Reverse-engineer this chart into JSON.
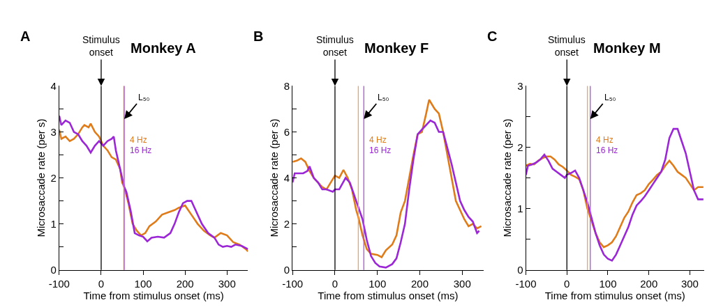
{
  "chart_data": [
    {
      "type": "line",
      "title": "Monkey A",
      "xlabel": "Time from stimulus onset (ms)",
      "ylabel": "Microsaccade rate (per s)",
      "annotations": [
        "A"
      ],
      "xlim": [
        -100,
        350
      ],
      "xticks": [
        -100,
        0,
        100,
        200,
        300
      ],
      "ylim": [
        0,
        4
      ],
      "yticks": [
        0,
        {
          "value": 0.5,
          "label": null
        },
        1,
        {
          "value": 1.5,
          "label": null
        },
        2,
        {
          "value": 2.5,
          "label": null
        },
        3,
        {
          "value": 3.5,
          "label": null
        },
        4
      ],
      "legend": false,
      "ref_lines": [
        {
          "axis": "x",
          "value": 0,
          "label": "Stimulus onset",
          "color": "#000000"
        },
        {
          "axis": "x",
          "value": 54,
          "color": "#f0a060"
        },
        {
          "axis": "x",
          "value": 55,
          "label": "L₅₀",
          "color": "#b050e0"
        }
      ],
      "series": [
        {
          "name": "4 Hz",
          "color": "#e07b1a",
          "x": [
            -100,
            -95,
            -85,
            -75,
            -65,
            -55,
            -45,
            -40,
            -30,
            -25,
            -15,
            -5,
            5,
            15,
            25,
            35,
            45,
            50,
            55,
            65,
            75,
            85,
            95,
            105,
            115,
            130,
            145,
            160,
            175,
            185,
            200,
            215,
            230,
            245,
            260,
            270,
            285,
            300,
            315,
            330,
            345,
            350
          ],
          "values": [
            3.05,
            2.85,
            2.9,
            2.8,
            2.85,
            2.95,
            3.1,
            3.15,
            3.1,
            3.18,
            3.0,
            2.9,
            2.7,
            2.6,
            2.45,
            2.4,
            2.2,
            1.9,
            1.8,
            1.45,
            1.0,
            0.85,
            0.75,
            0.8,
            0.95,
            1.05,
            1.2,
            1.25,
            1.3,
            1.35,
            1.4,
            1.2,
            1.0,
            0.85,
            0.75,
            0.7,
            0.8,
            0.75,
            0.6,
            0.55,
            0.45,
            0.4
          ]
        },
        {
          "name": "16 Hz",
          "color": "#9b26d6",
          "x": [
            -100,
            -95,
            -85,
            -75,
            -65,
            -55,
            -45,
            -35,
            -25,
            -15,
            -5,
            5,
            15,
            25,
            30,
            35,
            45,
            55,
            60,
            70,
            80,
            90,
            100,
            110,
            120,
            135,
            150,
            165,
            175,
            185,
            195,
            205,
            215,
            225,
            240,
            255,
            270,
            280,
            290,
            300,
            310,
            320,
            335,
            350
          ],
          "values": [
            3.35,
            3.15,
            3.25,
            3.2,
            3.0,
            2.95,
            2.8,
            2.7,
            2.55,
            2.7,
            2.8,
            2.7,
            2.8,
            2.85,
            2.9,
            2.6,
            2.2,
            1.8,
            1.7,
            1.3,
            0.8,
            0.75,
            0.72,
            0.62,
            0.7,
            0.72,
            0.7,
            0.8,
            1.0,
            1.25,
            1.45,
            1.5,
            1.5,
            1.3,
            1.0,
            0.8,
            0.7,
            0.55,
            0.5,
            0.52,
            0.5,
            0.55,
            0.52,
            0.45
          ]
        }
      ]
    },
    {
      "type": "line",
      "title": "Monkey F",
      "xlabel": "Time from stimulus onset (ms)",
      "ylabel": "Microsaccade rate (per s)",
      "annotations": [
        "B"
      ],
      "xlim": [
        -100,
        350
      ],
      "xticks": [
        -100,
        0,
        100,
        200,
        300
      ],
      "ylim": [
        0,
        8
      ],
      "yticks": [
        0,
        {
          "value": 1,
          "label": null
        },
        2,
        {
          "value": 3,
          "label": null
        },
        4,
        {
          "value": 5,
          "label": null
        },
        6,
        {
          "value": 7,
          "label": null
        },
        8
      ],
      "legend": false,
      "ref_lines": [
        {
          "axis": "x",
          "value": 0,
          "label": "Stimulus onset",
          "color": "#000000"
        },
        {
          "axis": "x",
          "value": 55,
          "color": "#f0a060"
        },
        {
          "axis": "x",
          "value": 68,
          "label": "L₅₀",
          "color": "#b050e0"
        }
      ],
      "series": [
        {
          "name": "4 Hz",
          "color": "#e07b1a",
          "x": [
            -100,
            -90,
            -80,
            -70,
            -60,
            -50,
            -40,
            -30,
            -20,
            -10,
            0,
            10,
            20,
            30,
            40,
            50,
            55,
            65,
            75,
            85,
            100,
            110,
            120,
            135,
            145,
            155,
            165,
            175,
            185,
            195,
            205,
            215,
            222,
            235,
            245,
            255,
            265,
            275,
            285,
            295,
            305,
            315,
            325,
            335,
            345
          ],
          "values": [
            4.7,
            4.75,
            4.85,
            4.7,
            4.3,
            4.0,
            3.8,
            3.6,
            3.5,
            3.8,
            4.1,
            4.0,
            4.35,
            4.0,
            3.5,
            2.6,
            2.3,
            1.5,
            0.9,
            0.7,
            0.65,
            0.55,
            0.85,
            1.1,
            1.5,
            2.5,
            3.0,
            4.0,
            5.0,
            5.9,
            6.0,
            6.8,
            7.4,
            7.0,
            6.8,
            6.0,
            5.0,
            4.0,
            3.0,
            2.6,
            2.2,
            1.9,
            2.0,
            1.8,
            1.9
          ]
        },
        {
          "name": "16 Hz",
          "color": "#9b26d6",
          "x": [
            -100,
            -95,
            -85,
            -75,
            -65,
            -60,
            -50,
            -40,
            -30,
            -20,
            -5,
            0,
            10,
            25,
            35,
            50,
            65,
            75,
            85,
            95,
            105,
            120,
            135,
            145,
            155,
            165,
            175,
            185,
            195,
            205,
            215,
            225,
            235,
            245,
            255,
            265,
            275,
            285,
            295,
            305,
            315,
            325,
            335,
            340
          ],
          "values": [
            3.8,
            4.2,
            4.2,
            4.2,
            4.3,
            4.5,
            4.0,
            3.8,
            3.5,
            3.5,
            3.4,
            3.5,
            3.5,
            4.0,
            3.8,
            3.0,
            2.2,
            1.3,
            0.6,
            0.3,
            0.15,
            0.1,
            0.25,
            0.5,
            1.2,
            2.0,
            3.5,
            4.8,
            5.9,
            6.1,
            6.3,
            6.5,
            6.4,
            6.0,
            6.0,
            5.3,
            4.6,
            3.8,
            3.0,
            2.6,
            2.3,
            2.1,
            1.6,
            1.7
          ]
        }
      ]
    },
    {
      "type": "line",
      "title": "Monkey M",
      "xlabel": "Time from stimulus onset (ms)",
      "ylabel": "Microsaccade rate (per s)",
      "annotations": [
        "C"
      ],
      "xlim": [
        -100,
        335
      ],
      "xticks": [
        -100,
        0,
        100,
        200,
        300
      ],
      "ylim": [
        0,
        3
      ],
      "yticks": [
        0,
        {
          "value": 0.5,
          "label": null
        },
        1,
        {
          "value": 1.5,
          "label": null
        },
        2,
        {
          "value": 2.5,
          "label": null
        },
        3
      ],
      "legend": false,
      "ref_lines": [
        {
          "axis": "x",
          "value": 0,
          "label": "Stimulus onset",
          "color": "#000000"
        },
        {
          "axis": "x",
          "value": 50,
          "color": "#f0a060"
        },
        {
          "axis": "x",
          "value": 57,
          "label": "L₅₀",
          "color": "#b050e0"
        }
      ],
      "series": [
        {
          "name": "4 Hz",
          "color": "#e07b1a",
          "x": [
            -100,
            -90,
            -80,
            -70,
            -60,
            -50,
            -40,
            -30,
            -20,
            -10,
            0,
            10,
            20,
            30,
            40,
            50,
            60,
            70,
            80,
            90,
            100,
            110,
            120,
            130,
            140,
            150,
            160,
            170,
            180,
            190,
            200,
            210,
            220,
            230,
            240,
            250,
            260,
            270,
            280,
            290,
            300,
            310,
            320,
            333
          ],
          "values": [
            1.7,
            1.73,
            1.72,
            1.78,
            1.82,
            1.85,
            1.85,
            1.8,
            1.72,
            1.68,
            1.62,
            1.55,
            1.52,
            1.48,
            1.3,
            1.0,
            0.8,
            0.6,
            0.45,
            0.37,
            0.4,
            0.45,
            0.55,
            0.7,
            0.85,
            0.95,
            1.1,
            1.22,
            1.25,
            1.3,
            1.4,
            1.47,
            1.55,
            1.6,
            1.7,
            1.78,
            1.7,
            1.6,
            1.55,
            1.5,
            1.4,
            1.3,
            1.35,
            1.35
          ]
        },
        {
          "name": "16 Hz",
          "color": "#9b26d6",
          "x": [
            -100,
            -95,
            -85,
            -75,
            -65,
            -55,
            -45,
            -35,
            -25,
            -15,
            -5,
            0,
            10,
            20,
            30,
            40,
            50,
            60,
            70,
            80,
            90,
            100,
            110,
            120,
            130,
            140,
            150,
            160,
            170,
            180,
            190,
            200,
            210,
            220,
            230,
            240,
            250,
            260,
            270,
            280,
            290,
            300,
            310,
            320,
            333
          ],
          "values": [
            1.55,
            1.7,
            1.72,
            1.75,
            1.8,
            1.88,
            1.78,
            1.65,
            1.6,
            1.55,
            1.5,
            1.55,
            1.58,
            1.62,
            1.5,
            1.3,
            1.1,
            0.85,
            0.6,
            0.4,
            0.25,
            0.18,
            0.15,
            0.25,
            0.4,
            0.55,
            0.7,
            0.9,
            1.05,
            1.12,
            1.2,
            1.3,
            1.4,
            1.5,
            1.6,
            1.8,
            2.15,
            2.3,
            2.3,
            2.1,
            1.9,
            1.6,
            1.3,
            1.15,
            1.15
          ]
        }
      ]
    }
  ]
}
